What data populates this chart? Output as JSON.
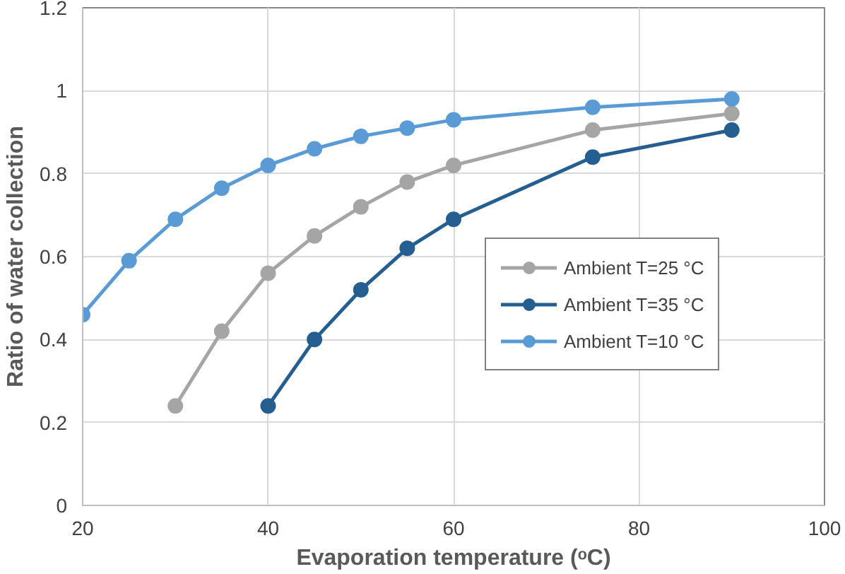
{
  "chart_data": {
    "type": "line",
    "xlabel": "Evaporation temperature (ᵒC)",
    "ylabel": "Ratio of water collection",
    "xlim": [
      20,
      100
    ],
    "xticks": [
      20,
      40,
      60,
      80,
      100
    ],
    "ylim": [
      0,
      1.2
    ],
    "yticks": [
      0,
      0.2,
      0.4,
      0.6,
      0.8,
      1,
      1.2
    ],
    "grid": true,
    "legend": "right",
    "marker": "circle",
    "line_style": "solid",
    "series": [
      {
        "name": "Ambient T=25 °C",
        "color": "#a5a5a5",
        "x": [
          30,
          35,
          40,
          45,
          50,
          55,
          60,
          75,
          90
        ],
        "values": [
          0.24,
          0.42,
          0.56,
          0.65,
          0.72,
          0.78,
          0.82,
          0.905,
          0.945
        ]
      },
      {
        "name": "Ambient T=35 °C",
        "color": "#255e91",
        "x": [
          40,
          45,
          50,
          55,
          60,
          75,
          90
        ],
        "values": [
          0.24,
          0.4,
          0.52,
          0.62,
          0.69,
          0.84,
          0.905
        ]
      },
      {
        "name": "Ambient T=10 °C",
        "color": "#5b9bd5",
        "x": [
          20,
          25,
          30,
          35,
          40,
          45,
          50,
          55,
          60,
          75,
          90
        ],
        "values": [
          0.46,
          0.59,
          0.69,
          0.765,
          0.82,
          0.86,
          0.89,
          0.91,
          0.93,
          0.96,
          0.98
        ]
      }
    ]
  }
}
